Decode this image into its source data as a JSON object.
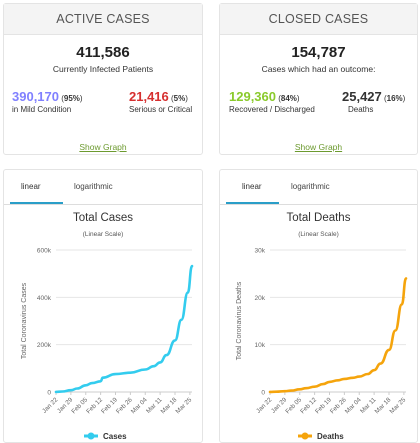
{
  "active": {
    "header": "ACTIVE CASES",
    "total": "411,586",
    "total_label": "Currently Infected Patients",
    "mild_num": "390,170",
    "mild_pct_open": " (",
    "mild_pct": "95%",
    "mild_pct_close": ")",
    "mild_label": "in Mild Condition",
    "serious_num": "21,416",
    "serious_pct_open": " (",
    "serious_pct": "5%",
    "serious_pct_close": ")",
    "serious_label": "Serious or Critical",
    "show_graph": "Show Graph"
  },
  "closed": {
    "header": "CLOSED CASES",
    "total": "154,787",
    "total_label": "Cases which had an outcome:",
    "recovered_num": "129,360",
    "recovered_pct_open": " (",
    "recovered_pct": "84%",
    "recovered_pct_close": ")",
    "recovered_label": "Recovered / Discharged",
    "deaths_num": "25,427",
    "deaths_pct_open": " (",
    "deaths_pct": "16%",
    "deaths_pct_close": ")",
    "deaths_label": "Deaths",
    "show_graph": "Show Graph"
  },
  "tabs": {
    "linear": "linear",
    "log": "logarithmic"
  },
  "colors": {
    "mild": "#8080ff",
    "serious": "#d62f2f",
    "recovered": "#8aca2b",
    "cases_line": "#33ccee",
    "deaths_line": "#f5a40c"
  },
  "chart_data": [
    {
      "type": "line",
      "title": "Total Cases",
      "subtitle": "(Linear Scale)",
      "ylabel": "Total Coronavirus Cases",
      "xlabel": "",
      "legend": "bottom",
      "y_ticks": [
        "0",
        "200k",
        "400k",
        "600k"
      ],
      "y_tick_values": [
        0,
        200000,
        400000,
        600000
      ],
      "ylim": [
        0,
        600000
      ],
      "x_ticks": [
        "Jan 22",
        "Jan 29",
        "Feb 05",
        "Feb 12",
        "Feb 19",
        "Feb 26",
        "Mar 04",
        "Mar 11",
        "Mar 18",
        "Mar 25"
      ],
      "x": [
        "Jan 22",
        "Jan 25",
        "Jan 29",
        "Feb 01",
        "Feb 05",
        "Feb 08",
        "Feb 12",
        "Feb 13",
        "Feb 19",
        "Feb 26",
        "Mar 04",
        "Mar 08",
        "Mar 11",
        "Mar 14",
        "Mar 18",
        "Mar 21",
        "Mar 24",
        "Mar 26"
      ],
      "series": [
        {
          "name": "Cases",
          "values": [
            580,
            2100,
            7800,
            14600,
            28300,
            37600,
            45200,
            60400,
            75700,
            81400,
            95000,
            109000,
            125000,
            156000,
            218000,
            305000,
            420000,
            532000
          ]
        }
      ]
    },
    {
      "type": "line",
      "title": "Total Deaths",
      "subtitle": "(Linear Scale)",
      "ylabel": "Total Coronavirus Deaths",
      "xlabel": "",
      "legend": "bottom",
      "y_ticks": [
        "0",
        "10k",
        "20k",
        "30k"
      ],
      "y_tick_values": [
        0,
        10000,
        20000,
        30000
      ],
      "ylim": [
        0,
        30000
      ],
      "x_ticks": [
        "Jan 22",
        "Jan 29",
        "Feb 05",
        "Feb 12",
        "Feb 19",
        "Feb 26",
        "Mar 04",
        "Mar 11",
        "Mar 18",
        "Mar 25"
      ],
      "x": [
        "Jan 22",
        "Jan 25",
        "Jan 29",
        "Feb 01",
        "Feb 05",
        "Feb 08",
        "Feb 12",
        "Feb 16",
        "Feb 19",
        "Feb 23",
        "Feb 26",
        "Mar 01",
        "Mar 04",
        "Mar 08",
        "Mar 11",
        "Mar 14",
        "Mar 18",
        "Mar 21",
        "Mar 24",
        "Mar 26"
      ],
      "series": [
        {
          "name": "Deaths",
          "values": [
            17,
            56,
            170,
            300,
            560,
            810,
            1120,
            1670,
            2130,
            2470,
            2770,
            2990,
            3250,
            3800,
            4600,
            6000,
            8900,
            13000,
            18500,
            24000
          ]
        }
      ]
    }
  ]
}
